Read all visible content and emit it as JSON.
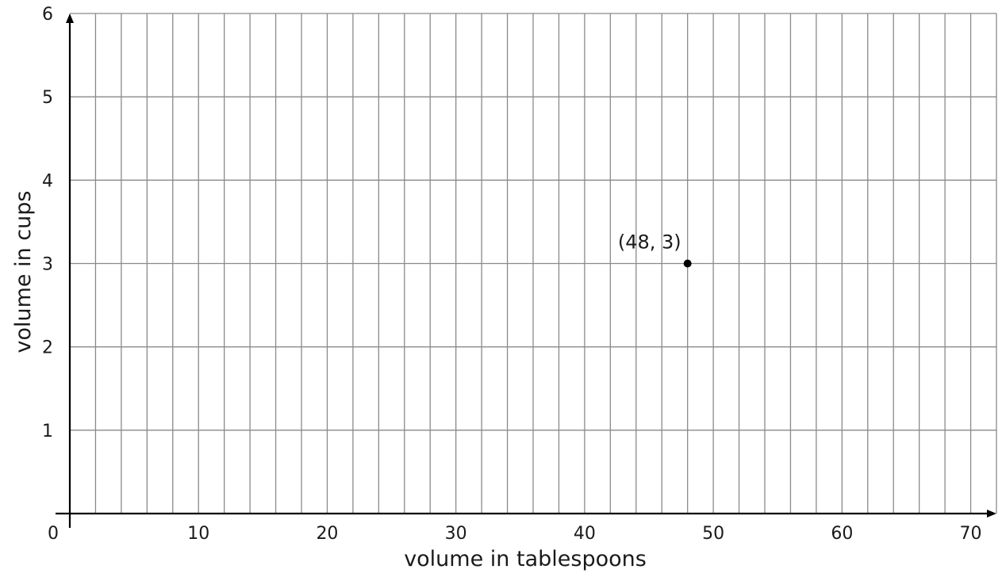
{
  "chart_data": {
    "type": "scatter",
    "xlabel": "volume in tablespoons",
    "ylabel": "volume in cups",
    "origin_label": "0",
    "xlim": [
      0,
      72
    ],
    "ylim": [
      0,
      6
    ],
    "x_grid_step": 2,
    "y_grid_step": 1,
    "x_ticks": [
      10,
      20,
      30,
      40,
      50,
      60,
      70
    ],
    "y_ticks": [
      1,
      2,
      3,
      4,
      5,
      6
    ],
    "grid": true,
    "points": [
      {
        "x": 48,
        "y": 3,
        "label": "(48, 3)"
      }
    ],
    "colors": {
      "grid": "#8a8a8a",
      "axis": "#000000",
      "point": "#000000"
    }
  }
}
